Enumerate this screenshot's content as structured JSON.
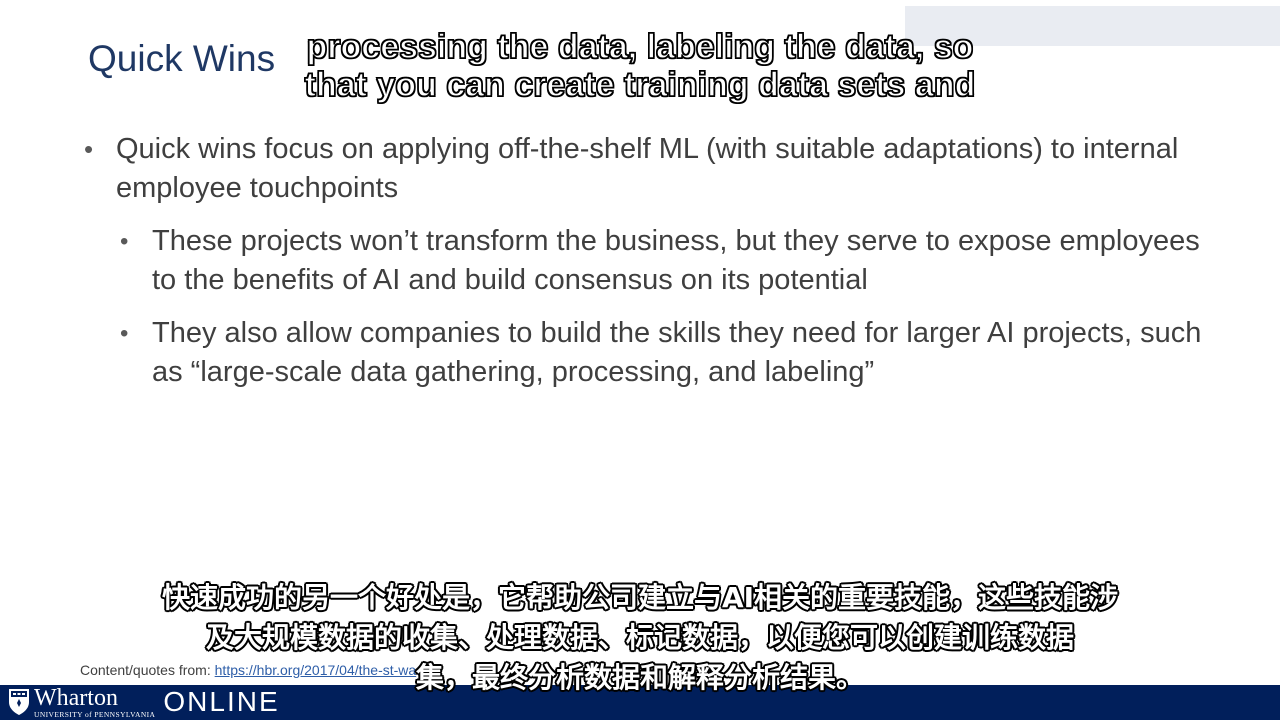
{
  "slide": {
    "title": "Quick Wins",
    "bullets": [
      {
        "level": 1,
        "text": "Quick wins focus on applying off-the-shelf ML (with suitable adaptations) to internal employee touchpoints"
      },
      {
        "level": 2,
        "text": "These projects won’t transform the business, but they serve to expose employees to the benefits of AI and build consensus on its potential"
      },
      {
        "level": 2,
        "text": "They also allow companies to build the skills they need for larger AI projects, such as “large-scale data gathering, processing, and labeling”"
      }
    ],
    "source_label": "Content/quotes from: ",
    "source_link": "https://hbr.org/2017/04/the-st-wa"
  },
  "captions": {
    "top_line1": "processing the data, labeling the data, so",
    "top_line2": "that you can create training data sets and",
    "bottom_line1": "快速成功的另一个好处是，它帮助公司建立与AI相关的重要技能，这些技能涉",
    "bottom_line2": "及大规模数据的收集、处理数据、标记数据，以便您可以创建训练数据",
    "bottom_line3": "集，最终分析数据和解释分析结果。"
  },
  "footer": {
    "brand": "Wharton",
    "brand_sub": "UNIVERSITY of PENNSYLVANIA",
    "online": "ONLINE",
    "color": "#011f5b"
  },
  "icons": [
    "wharton-shield-icon",
    "bullet-dot-icon"
  ]
}
